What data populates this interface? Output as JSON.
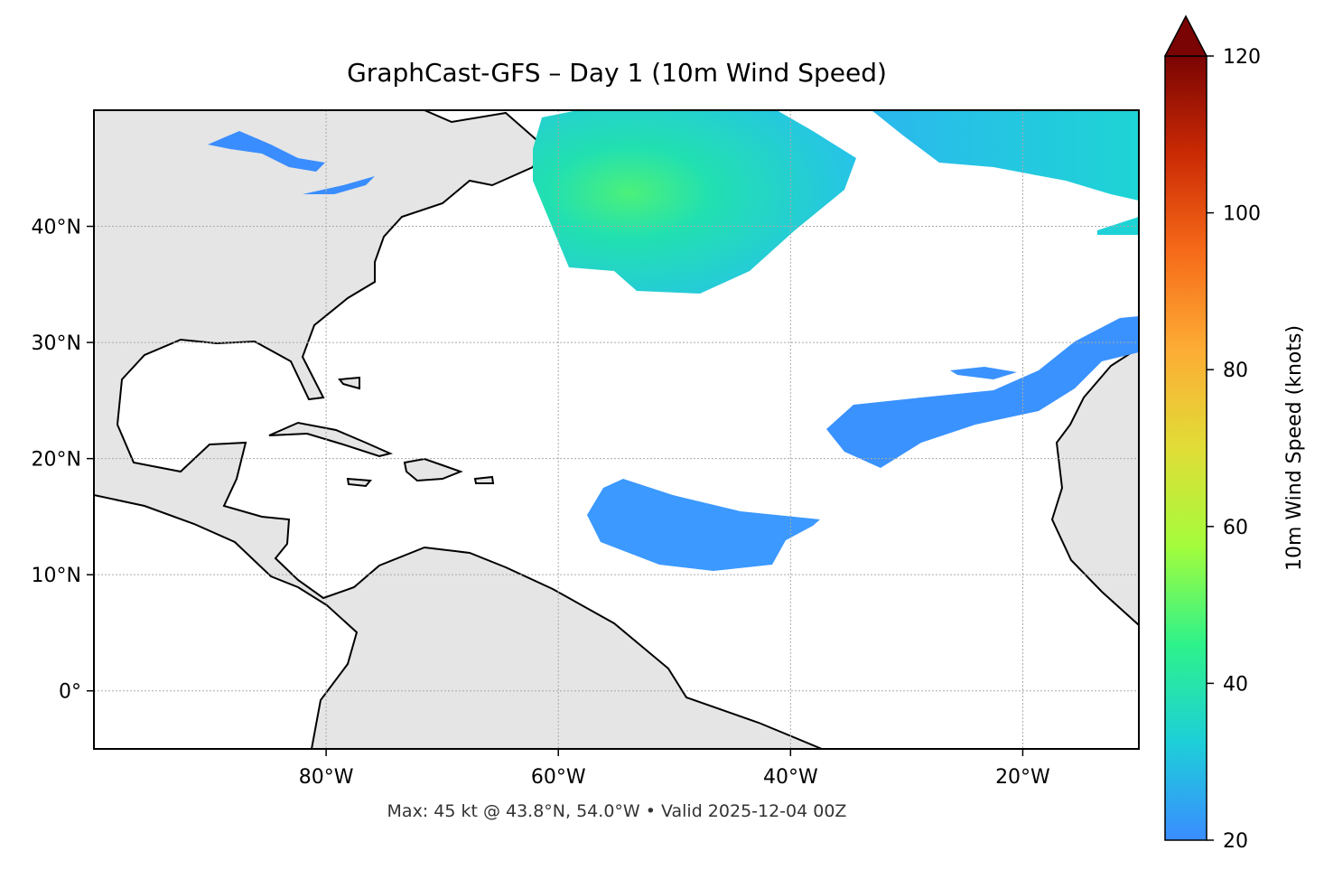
{
  "chart_data": {
    "type": "map",
    "title": "GraphCast-GFS – Day 1 (10m Wind Speed)",
    "footnote": "Max: 45 kt @ 43.8°N, 54.0°W • Valid 2025-12-04 00Z",
    "xlim": [
      -100,
      -10
    ],
    "ylim": [
      -5,
      50
    ],
    "xticks": [
      {
        "value": -80,
        "label": "80°W"
      },
      {
        "value": -60,
        "label": "60°W"
      },
      {
        "value": -40,
        "label": "40°W"
      },
      {
        "value": -20,
        "label": "20°W"
      }
    ],
    "yticks": [
      {
        "value": 0,
        "label": "0°"
      },
      {
        "value": 10,
        "label": "10°N"
      },
      {
        "value": 20,
        "label": "20°N"
      },
      {
        "value": 30,
        "label": "30°N"
      },
      {
        "value": 40,
        "label": "40°N"
      }
    ],
    "grid": true,
    "colorbar": {
      "label": "10m Wind Speed (knots)",
      "lim": [
        20,
        120
      ],
      "ticks": [
        20,
        40,
        60,
        80,
        100,
        120
      ],
      "colors": [
        "#3a8dff",
        "#1dcfd8",
        "#2ef28a",
        "#a4fc3c",
        "#e1dd37",
        "#fdad35",
        "#f66b19",
        "#cb2a04",
        "#7a0403"
      ]
    }
  }
}
